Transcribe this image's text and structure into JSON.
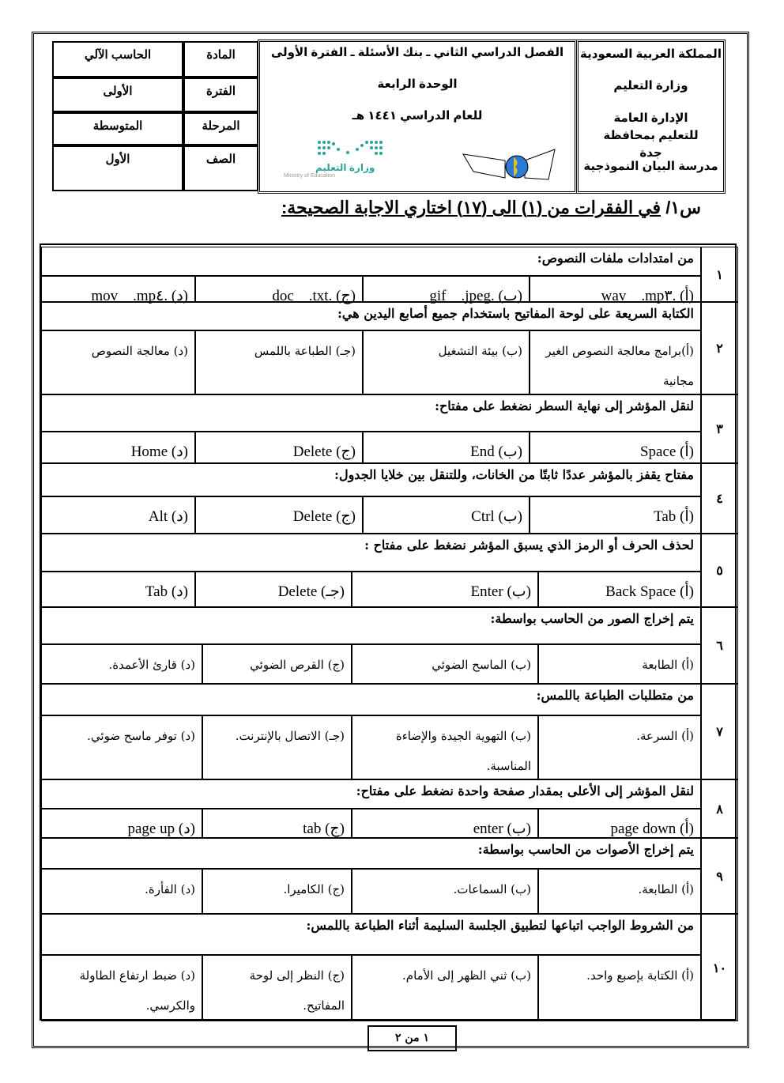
{
  "header": {
    "right": [
      "المملكة العربية السعودية",
      "وزارة التعليم",
      "الإدارة العامة للتعليم بمحافظة جدة",
      "مدرسة البيان النموذجية"
    ],
    "center": [
      "الفصل الدراسي الثاني ـ بنك الأسئلة ـ الفترة الأولى",
      "الوحدة الرابعة",
      "للعام الدراسي  ١٤٤١ هـ"
    ],
    "moe_logo": {
      "ar": "وزارة التعليم",
      "en": "Ministry of Education",
      "color": "#2aa39a"
    },
    "info": [
      {
        "label": "المادة",
        "value": "الحاسب الآلي"
      },
      {
        "label": "الفترة",
        "value": "الأولى"
      },
      {
        "label": "المرحلة",
        "value": "المتوسطة"
      },
      {
        "label": "الصف",
        "value": "الأول"
      }
    ]
  },
  "section_title": {
    "prefix": "س١/",
    "text": "في الفقرات من (١) الى (١٧) اختاري الاجابة الصحيحة:"
  },
  "questions": [
    {
      "num": "١",
      "text": "من امتدادات ملفات النصوص:",
      "options": [
        "(أ) .wav _ .mp٣",
        "(ب) .gif _ .jpeg",
        "(ج) .doc _ .txt",
        "(د) .mov _ .mp٤"
      ]
    },
    {
      "num": "٢",
      "text": "الكتابة السريعة على لوحة المفاتيح باستخدام جميع أصابع اليدين هي:",
      "options": [
        "(أ)برامج معالجة النصوص الغير مجانية",
        "(ب) بيئة التشغيل",
        "(جـ) الطباعة باللمس",
        "(د) معالجة النصوص"
      ]
    },
    {
      "num": "٣",
      "text": "لنقل المؤشر إلى نهاية السطر نضغط على مفتاح:",
      "options": [
        "(أ) Space",
        "(ب) End",
        "(ج) Delete",
        "(د) Home"
      ]
    },
    {
      "num": "٤",
      "text": "مفتاح يقفز بالمؤشر عددًا ثابتًا من الخانات، وللتنقل بين خلايا الجدول:",
      "options": [
        "(أ) Tab",
        "(ب) Ctrl",
        "(ج) Delete",
        "(د) Alt"
      ]
    },
    {
      "num": "٥",
      "text": "لحذف الحرف أو الرمز الذي يسبق المؤشر نضغط على مفتاح :",
      "options": [
        "(أ)   Back Space",
        "(ب) Enter",
        "(جـ) Delete",
        "(د) Tab"
      ]
    },
    {
      "num": "٦",
      "text": "يتم إخراج الصور من الحاسب بواسطة:",
      "options": [
        "(أ) الطابعة",
        "(ب) الماسح الضوئي",
        "(ج) القرص الضوئي",
        "(د) قارئ الأعمدة."
      ]
    },
    {
      "num": "٧",
      "text": "من متطلبات الطباعة باللمس:",
      "options": [
        "(أ) السرعة.",
        "(ب) التهوية الجيدة والإضاءة المناسبة.",
        "(جـ) الاتصال بالإنترنت.",
        "(د) توفر ماسح ضوئي."
      ]
    },
    {
      "num": "٨",
      "text": "لنقل المؤشر إلى الأعلى بمقدار صفحة واحدة نضغط على مفتاح:",
      "options": [
        "(أ) page down",
        "(ب) enter",
        "(ج) tab",
        "(د) page up"
      ]
    },
    {
      "num": "٩",
      "text": "يتم إخراج الأصوات من الحاسب بواسطة:",
      "options": [
        "(أ) الطابعة.",
        "(ب) السماعات.",
        "(ج) الكاميرا.",
        "(د) الفأرة."
      ]
    },
    {
      "num": "١٠",
      "text": "من الشروط الواجب اتباعها لتطبيق الجلسة السليمة أثناء الطباعة باللمس:",
      "options": [
        "(أ) الكتابة بإصبع واحد.",
        "(ب) ثني الظهر إلى الأمام.",
        "(ج) النظر إلى لوحة المفاتيح.",
        "(د) ضبط ارتفاع الطاولة والكرسي."
      ]
    }
  ],
  "footer": {
    "page": "١ من ٢"
  }
}
